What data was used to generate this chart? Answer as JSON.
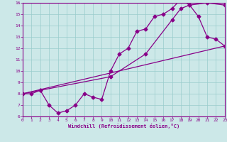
{
  "xlabel": "Windchill (Refroidissement éolien,°C)",
  "bg_color": "#cce8e8",
  "grid_color": "#99cccc",
  "line_color": "#880088",
  "spine_color": "#880088",
  "xmin": 0,
  "xmax": 23,
  "ymin": 6,
  "ymax": 16,
  "line1_x": [
    0,
    1,
    2,
    3,
    4,
    5,
    6,
    7,
    8,
    9,
    10,
    11,
    12,
    13,
    14,
    15,
    16,
    17,
    18,
    19,
    20,
    21,
    22,
    23
  ],
  "line1_y": [
    8.0,
    8.0,
    8.3,
    7.0,
    6.3,
    6.5,
    7.0,
    8.0,
    7.7,
    7.5,
    10.0,
    11.5,
    12.0,
    13.5,
    13.7,
    14.8,
    15.0,
    15.5,
    16.3,
    15.8,
    14.8,
    13.0,
    12.8,
    12.2
  ],
  "line2_x": [
    0,
    2,
    10,
    14,
    17,
    18,
    19,
    21,
    23
  ],
  "line2_y": [
    8.0,
    8.3,
    9.5,
    11.5,
    14.5,
    15.5,
    15.8,
    16.0,
    15.8
  ],
  "line3_x": [
    0,
    23
  ],
  "line3_y": [
    8.0,
    12.2
  ]
}
